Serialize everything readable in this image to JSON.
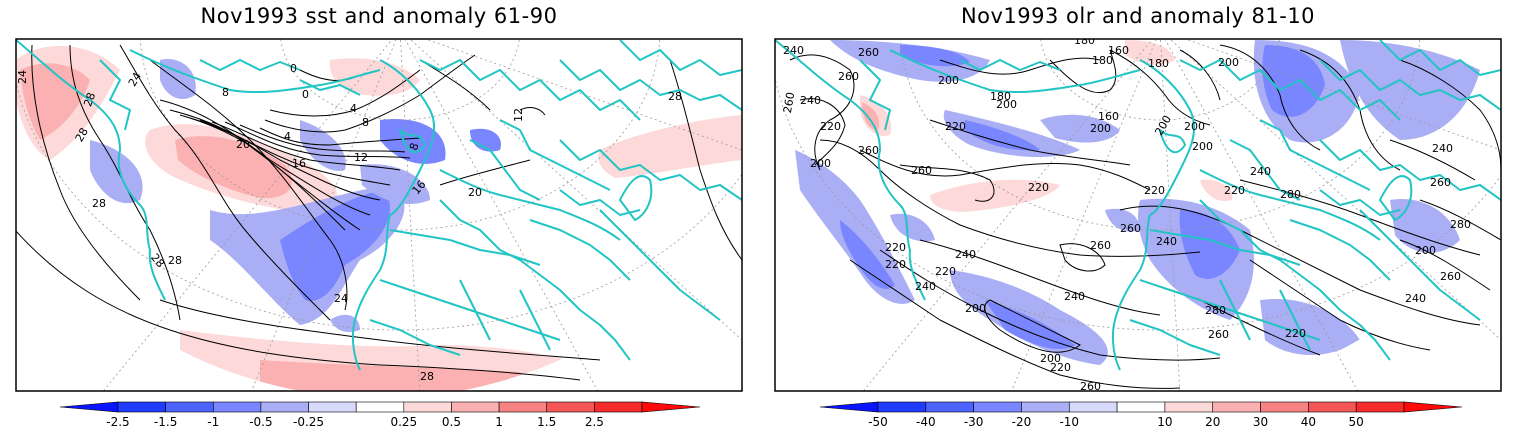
{
  "panels": [
    {
      "title": "Nov1993 sst and anomaly 61-90",
      "colors": {
        "neg": [
          "#1f3cff",
          "#4d63ff",
          "#7a86ff",
          "#a9aef5",
          "#d8dafb"
        ],
        "pos": [
          "#fdd9d9",
          "#fbb1b1",
          "#f88383",
          "#f55757",
          "#f52a2a"
        ],
        "coast": "#22c4c4"
      },
      "colorbar_labels": [
        "-2.5",
        "-1.5",
        "-1",
        "-0.5",
        "-0.25",
        "0.25",
        "0.5",
        "1",
        "1.5",
        "2.5"
      ],
      "contour_labels": [
        {
          "text": "24"
        },
        {
          "text": "28"
        },
        {
          "text": "28"
        },
        {
          "text": "24"
        },
        {
          "text": "8"
        },
        {
          "text": "0"
        },
        {
          "text": "0"
        },
        {
          "text": "4"
        },
        {
          "text": "8"
        },
        {
          "text": "4"
        },
        {
          "text": "20"
        },
        {
          "text": "16"
        },
        {
          "text": "12"
        },
        {
          "text": "8"
        },
        {
          "text": "16"
        },
        {
          "text": "20"
        },
        {
          "text": "28"
        },
        {
          "text": "28"
        },
        {
          "text": "28"
        },
        {
          "text": "24"
        },
        {
          "text": "28"
        },
        {
          "text": "28"
        },
        {
          "text": "12"
        }
      ]
    },
    {
      "title": "Nov1993 olr and anomaly 81-10",
      "colors": {
        "neg": [
          "#1f3cff",
          "#4d63ff",
          "#7a86ff",
          "#a9aef5",
          "#d8dafb"
        ],
        "pos": [
          "#fdd9d9",
          "#fbb1b1",
          "#f88383",
          "#f55757",
          "#f52a2a"
        ],
        "coast": "#22c4c4"
      },
      "colorbar_labels": [
        "-50",
        "-40",
        "-30",
        "-20",
        "-10",
        "10",
        "20",
        "30",
        "40",
        "50"
      ],
      "contour_labels": [
        {
          "text": "240"
        },
        {
          "text": "260"
        },
        {
          "text": "260"
        },
        {
          "text": "240"
        },
        {
          "text": "260"
        },
        {
          "text": "220"
        },
        {
          "text": "260"
        },
        {
          "text": "200"
        },
        {
          "text": "200"
        },
        {
          "text": "180"
        },
        {
          "text": "180"
        },
        {
          "text": "160"
        },
        {
          "text": "180"
        },
        {
          "text": "200"
        },
        {
          "text": "180"
        },
        {
          "text": "200"
        },
        {
          "text": "200"
        },
        {
          "text": "160"
        },
        {
          "text": "200"
        },
        {
          "text": "220"
        },
        {
          "text": "200"
        },
        {
          "text": "260"
        },
        {
          "text": "220"
        },
        {
          "text": "200"
        },
        {
          "text": "220"
        },
        {
          "text": "220"
        },
        {
          "text": "240"
        },
        {
          "text": "280"
        },
        {
          "text": "260"
        },
        {
          "text": "240"
        },
        {
          "text": "260"
        },
        {
          "text": "280"
        },
        {
          "text": "240"
        },
        {
          "text": "260"
        },
        {
          "text": "220"
        },
        {
          "text": "240"
        },
        {
          "text": "240"
        },
        {
          "text": "200"
        },
        {
          "text": "280"
        },
        {
          "text": "260"
        },
        {
          "text": "220"
        },
        {
          "text": "200"
        },
        {
          "text": "220"
        },
        {
          "text": "240"
        },
        {
          "text": "260"
        },
        {
          "text": "240"
        },
        {
          "text": "200"
        },
        {
          "text": "260"
        },
        {
          "text": "220"
        },
        {
          "text": "220"
        }
      ]
    }
  ]
}
